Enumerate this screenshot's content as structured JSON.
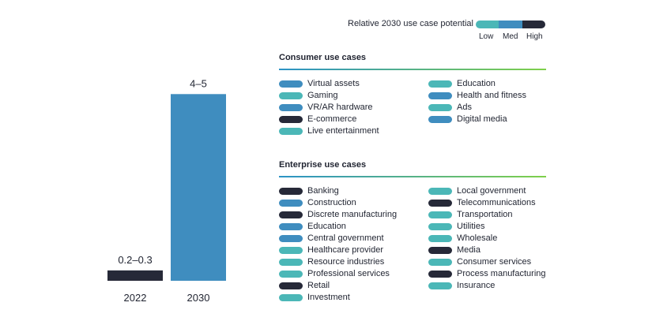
{
  "colors": {
    "low": "#4bb7b7",
    "med": "#3f8dbf",
    "high": "#262938",
    "bar2030": "#3f8dbf",
    "bar2022": "#262938"
  },
  "chart_data": {
    "type": "bar",
    "categories": [
      "2022",
      "2030"
    ],
    "values": [
      0.25,
      4.5
    ],
    "data_labels": [
      "0.2–0.3",
      "4–5"
    ],
    "ylim": [
      0,
      5
    ]
  },
  "legend": {
    "title": "Relative 2030 use case potential",
    "low": "Low",
    "med": "Med",
    "high": "High"
  },
  "consumer": {
    "title": "Consumer use cases",
    "left": [
      {
        "label": "Virtual assets",
        "level": "med"
      },
      {
        "label": "Gaming",
        "level": "low"
      },
      {
        "label": "VR/AR hardware",
        "level": "med"
      },
      {
        "label": "E-commerce",
        "level": "high"
      },
      {
        "label": "Live entertainment",
        "level": "low"
      }
    ],
    "right": [
      {
        "label": "Education",
        "level": "low"
      },
      {
        "label": "Health and fitness",
        "level": "med"
      },
      {
        "label": "Ads",
        "level": "low"
      },
      {
        "label": "Digital media",
        "level": "med"
      }
    ]
  },
  "enterprise": {
    "title": "Enterprise use cases",
    "left": [
      {
        "label": "Banking",
        "level": "high"
      },
      {
        "label": "Construction",
        "level": "med"
      },
      {
        "label": "Discrete manufacturing",
        "level": "high"
      },
      {
        "label": "Education",
        "level": "med"
      },
      {
        "label": "Central government",
        "level": "med"
      },
      {
        "label": "Healthcare provider",
        "level": "low"
      },
      {
        "label": "Resource industries",
        "level": "low"
      },
      {
        "label": "Professional services",
        "level": "low"
      },
      {
        "label": "Retail",
        "level": "high"
      },
      {
        "label": "Investment",
        "level": "low"
      }
    ],
    "right": [
      {
        "label": "Local government",
        "level": "low"
      },
      {
        "label": "Telecommunications",
        "level": "high"
      },
      {
        "label": "Transportation",
        "level": "low"
      },
      {
        "label": "Utilities",
        "level": "low"
      },
      {
        "label": "Wholesale",
        "level": "low"
      },
      {
        "label": "Media",
        "level": "high"
      },
      {
        "label": "Consumer services",
        "level": "low"
      },
      {
        "label": "Process manufacturing",
        "level": "high"
      },
      {
        "label": "Insurance",
        "level": "low"
      }
    ]
  }
}
